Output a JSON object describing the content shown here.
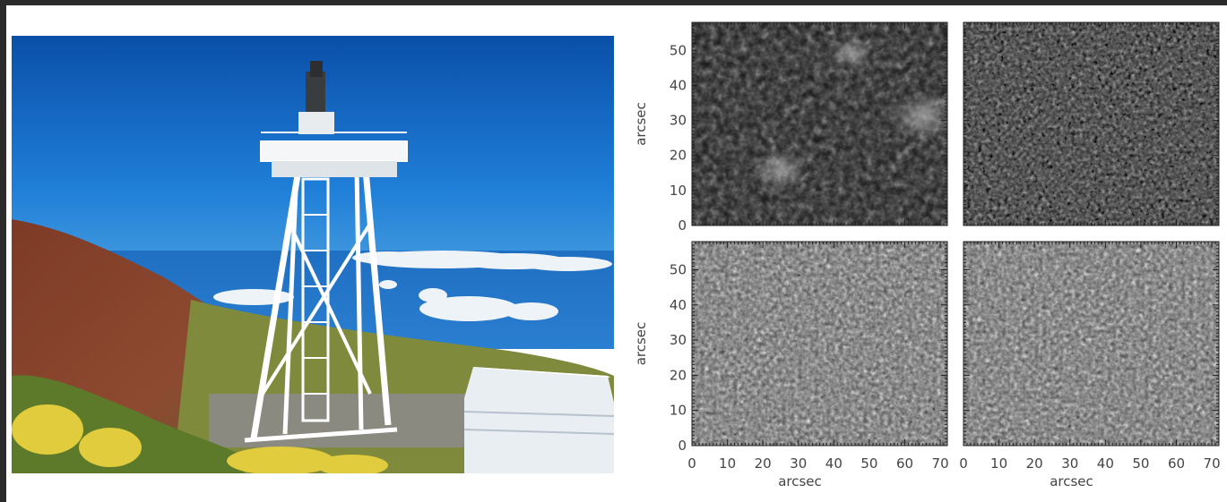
{
  "figure": {
    "photo": {
      "subject": "solar-telescope-tower-photo",
      "sky_color": "#0d5bb8",
      "hillside_color": "#7a3b2a",
      "shrub_color": "#d9c23a"
    },
    "panels_grid": {
      "x_axis_label": "arcsec",
      "y_axis_label": "arcsec",
      "x_ticks": [
        "0",
        "10",
        "20",
        "30",
        "40",
        "50",
        "60",
        "70"
      ],
      "y_ticks": [
        "0",
        "10",
        "20",
        "30",
        "40",
        "50"
      ],
      "x_range": [
        0,
        72
      ],
      "y_range": [
        0,
        58
      ],
      "panels": [
        {
          "id": "top-left",
          "style": "dark-network"
        },
        {
          "id": "top-right",
          "style": "granulation-dark"
        },
        {
          "id": "bottom-left",
          "style": "granulation"
        },
        {
          "id": "bottom-right",
          "style": "granulation"
        }
      ]
    }
  }
}
